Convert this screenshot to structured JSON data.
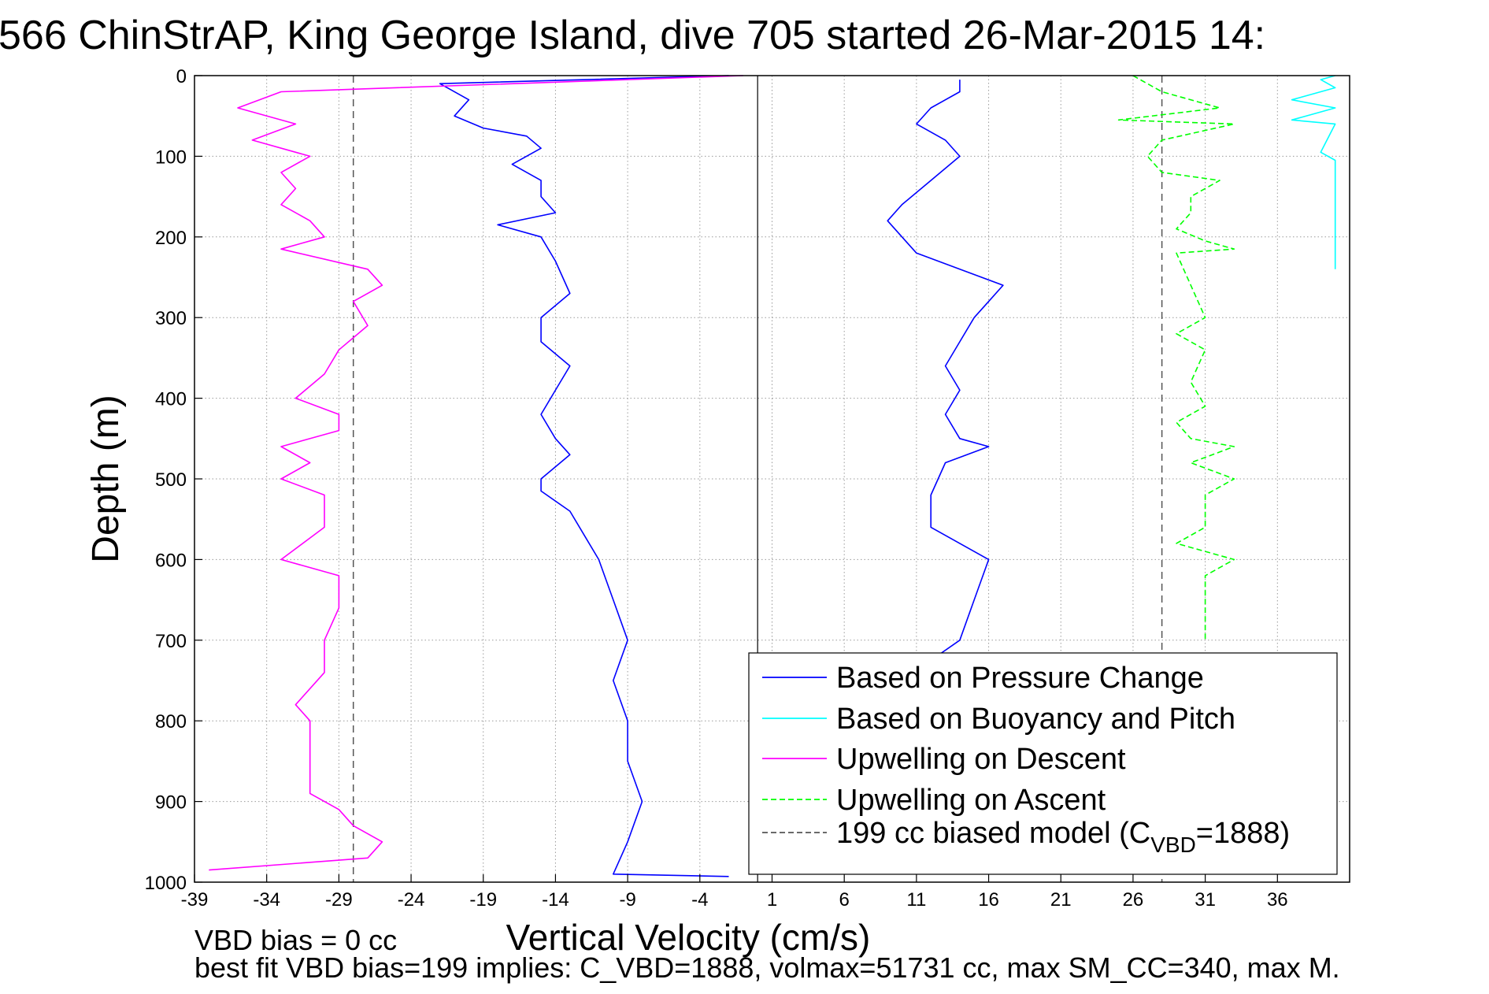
{
  "chart_data": {
    "type": "line",
    "title": "566 ChinStrAP, King George Island, dive 705 started 26-Mar-2015 14:",
    "xlabel": "Vertical Velocity (cm/s)",
    "ylabel": "Depth (m)",
    "xlim": [
      -39,
      41
    ],
    "ylim": [
      0,
      1000
    ],
    "y_reversed": true,
    "grid": true,
    "x_ticks": [
      -39,
      -34,
      -29,
      -24,
      -19,
      -14,
      -9,
      -4,
      1,
      6,
      11,
      16,
      21,
      26,
      31,
      36
    ],
    "x_tick_labels": [
      "-39",
      "-34",
      "-29",
      "-24",
      "-19",
      "-14",
      "-9",
      "-4",
      "1",
      "6",
      "11",
      "16",
      "21",
      "26",
      "31",
      "36"
    ],
    "y_ticks": [
      0,
      100,
      200,
      300,
      400,
      500,
      600,
      700,
      800,
      900,
      1000
    ],
    "y_tick_labels": [
      "0",
      "100",
      "200",
      "300",
      "400",
      "500",
      "600",
      "700",
      "800",
      "900",
      "1000"
    ],
    "zero_line_x": 0,
    "model_bias_lines_x": [
      -28,
      28
    ],
    "legend_position": "lower-right",
    "series": [
      {
        "name": "Based on Pressure Change",
        "color": "#0000ff",
        "style": "solid",
        "points": [
          [
            -2,
            0
          ],
          [
            -22,
            10
          ],
          [
            -20,
            30
          ],
          [
            -21,
            50
          ],
          [
            -19,
            65
          ],
          [
            -16,
            75
          ],
          [
            -15,
            90
          ],
          [
            -17,
            110
          ],
          [
            -15,
            130
          ],
          [
            -15,
            150
          ],
          [
            -14,
            170
          ],
          [
            -18,
            185
          ],
          [
            -15,
            200
          ],
          [
            -14,
            230
          ],
          [
            -13,
            270
          ],
          [
            -15,
            300
          ],
          [
            -15,
            330
          ],
          [
            -13,
            360
          ],
          [
            -14,
            390
          ],
          [
            -15,
            420
          ],
          [
            -14,
            450
          ],
          [
            -13,
            470
          ],
          [
            -15,
            500
          ],
          [
            -15,
            515
          ],
          [
            -13,
            540
          ],
          [
            -12,
            570
          ],
          [
            -11,
            600
          ],
          [
            -10,
            650
          ],
          [
            -9,
            700
          ],
          [
            -10,
            750
          ],
          [
            -9,
            800
          ],
          [
            -9,
            850
          ],
          [
            -8,
            900
          ],
          [
            -9,
            950
          ],
          [
            -10,
            990
          ],
          [
            -2,
            993
          ]
        ]
      },
      {
        "name": "Based on Pressure Change",
        "color": "#0000ff",
        "style": "solid",
        "points": [
          [
            14,
            5
          ],
          [
            14,
            20
          ],
          [
            12,
            40
          ],
          [
            11,
            60
          ],
          [
            13,
            80
          ],
          [
            14,
            100
          ],
          [
            12,
            130
          ],
          [
            10,
            160
          ],
          [
            9,
            180
          ],
          [
            10,
            200
          ],
          [
            11,
            220
          ],
          [
            14,
            240
          ],
          [
            17,
            260
          ],
          [
            16,
            280
          ],
          [
            15,
            300
          ],
          [
            14,
            330
          ],
          [
            13,
            360
          ],
          [
            14,
            390
          ],
          [
            13,
            420
          ],
          [
            14,
            450
          ],
          [
            16,
            460
          ],
          [
            13,
            480
          ],
          [
            12,
            520
          ],
          [
            12,
            560
          ],
          [
            14,
            580
          ],
          [
            16,
            600
          ],
          [
            15,
            650
          ],
          [
            14,
            700
          ],
          [
            12,
            725
          ]
        ]
      },
      {
        "name": "Based on Buoyancy and Pitch",
        "color": "#00ffff",
        "style": "solid",
        "points": [
          [
            40,
            0
          ],
          [
            39,
            5
          ],
          [
            40,
            15
          ],
          [
            37,
            30
          ],
          [
            40,
            40
          ],
          [
            37,
            55
          ],
          [
            40,
            60
          ],
          [
            39,
            95
          ],
          [
            40,
            105
          ],
          [
            40,
            140
          ],
          [
            40,
            210
          ],
          [
            40,
            225
          ],
          [
            40,
            240
          ]
        ]
      },
      {
        "name": "Upwelling on Descent",
        "color": "#ff00ff",
        "style": "solid",
        "points": [
          [
            -1,
            0
          ],
          [
            -33,
            20
          ],
          [
            -36,
            40
          ],
          [
            -32,
            60
          ],
          [
            -35,
            80
          ],
          [
            -31,
            100
          ],
          [
            -33,
            120
          ],
          [
            -32,
            140
          ],
          [
            -33,
            160
          ],
          [
            -31,
            180
          ],
          [
            -30,
            200
          ],
          [
            -33,
            215
          ],
          [
            -27,
            240
          ],
          [
            -26,
            260
          ],
          [
            -28,
            280
          ],
          [
            -27,
            310
          ],
          [
            -29,
            340
          ],
          [
            -30,
            370
          ],
          [
            -32,
            400
          ],
          [
            -29,
            420
          ],
          [
            -29,
            440
          ],
          [
            -33,
            460
          ],
          [
            -31,
            480
          ],
          [
            -33,
            500
          ],
          [
            -30,
            520
          ],
          [
            -30,
            560
          ],
          [
            -33,
            600
          ],
          [
            -29,
            620
          ],
          [
            -29,
            660
          ],
          [
            -30,
            700
          ],
          [
            -30,
            740
          ],
          [
            -32,
            780
          ],
          [
            -31,
            800
          ],
          [
            -31,
            850
          ],
          [
            -31,
            890
          ],
          [
            -29,
            910
          ],
          [
            -28,
            930
          ],
          [
            -26,
            950
          ],
          [
            -27,
            970
          ],
          [
            -38,
            985
          ]
        ]
      },
      {
        "name": "Upwelling on Ascent",
        "color": "#00ff00",
        "style": "dashed",
        "points": [
          [
            26,
            0
          ],
          [
            28,
            20
          ],
          [
            32,
            40
          ],
          [
            25,
            55
          ],
          [
            33,
            60
          ],
          [
            28,
            80
          ],
          [
            27,
            100
          ],
          [
            28,
            120
          ],
          [
            32,
            130
          ],
          [
            30,
            150
          ],
          [
            30,
            170
          ],
          [
            29,
            190
          ],
          [
            31,
            205
          ],
          [
            33,
            215
          ],
          [
            29,
            220
          ],
          [
            30,
            260
          ],
          [
            31,
            300
          ],
          [
            29,
            320
          ],
          [
            31,
            340
          ],
          [
            30,
            380
          ],
          [
            31,
            410
          ],
          [
            29,
            430
          ],
          [
            30,
            450
          ],
          [
            33,
            460
          ],
          [
            30,
            480
          ],
          [
            33,
            500
          ],
          [
            31,
            520
          ],
          [
            31,
            560
          ],
          [
            29,
            580
          ],
          [
            33,
            600
          ],
          [
            31,
            620
          ],
          [
            31,
            660
          ],
          [
            31,
            700
          ]
        ]
      },
      {
        "name": "199 cc biased model (C_VBD=1888)",
        "color": "#555555",
        "style": "dashed",
        "points": []
      }
    ]
  },
  "legend": [
    {
      "label": "Based on Pressure Change",
      "color": "#0000ff",
      "dash": false
    },
    {
      "label": "Based on Buoyancy and Pitch",
      "color": "#00ffff",
      "dash": false
    },
    {
      "label": "Upwelling on Descent",
      "color": "#ff00ff",
      "dash": false
    },
    {
      "label": "Upwelling on Ascent",
      "color": "#00ff00",
      "dash": true
    },
    {
      "label_main": "199 cc biased model (C",
      "label_sub": "VBD",
      "label_tail": "=1888)",
      "color": "#555555",
      "dash": true
    }
  ],
  "footer": {
    "line1": "VBD bias = 0 cc",
    "line2": "best fit VBD bias=199 implies: C_VBD=1888, volmax=51731 cc, max SM_CC=340, max M."
  }
}
